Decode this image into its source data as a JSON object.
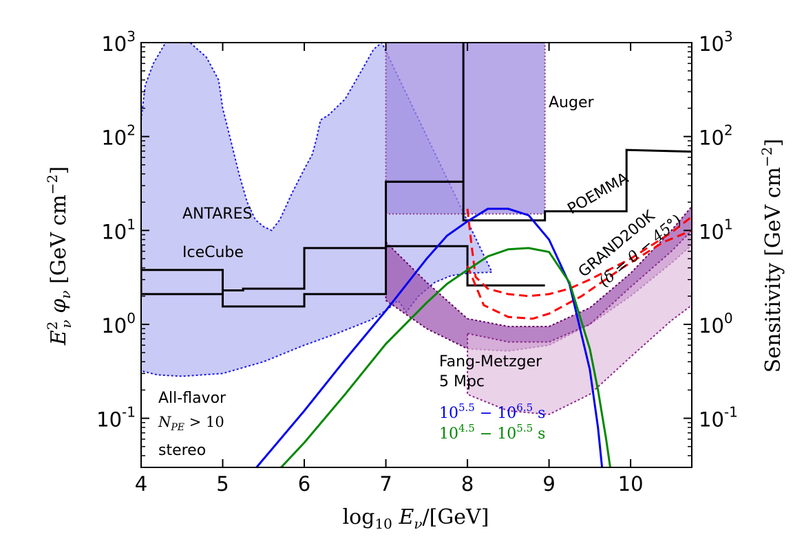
{
  "chart_data": {
    "type": "line",
    "xlabel": "log10 Eν/[GeV]",
    "ylabel_left": "E²ν φν [GeV cm⁻²]",
    "ylabel_right": "Sensitivity [GeV cm⁻²]",
    "xlim": [
      4,
      10.75
    ],
    "ylim": [
      0.03,
      1000
    ],
    "yscale": "log",
    "x_ticks": [
      "4",
      "5",
      "6",
      "7",
      "8",
      "9",
      "10"
    ],
    "y_ticks": [
      {
        "value": 0.1,
        "base": "10",
        "exp": "-1"
      },
      {
        "value": 1,
        "base": "10",
        "exp": "0"
      },
      {
        "value": 10,
        "base": "10",
        "exp": "1"
      },
      {
        "value": 100,
        "base": "10",
        "exp": "2"
      },
      {
        "value": 1000,
        "base": "10",
        "exp": "3"
      }
    ],
    "bands": [
      {
        "name": "ANTARES / IceCube",
        "color": "#b3b3f2",
        "edge": "#1a1ae6",
        "upper": [
          [
            4.0,
            150
          ],
          [
            4.05,
            350
          ],
          [
            4.15,
            600
          ],
          [
            4.3,
            1000
          ],
          [
            4.45,
            1000
          ],
          [
            4.6,
            1000
          ],
          [
            4.8,
            700
          ],
          [
            4.95,
            400
          ],
          [
            5.0,
            200
          ],
          [
            5.1,
            90
          ],
          [
            5.2,
            40
          ],
          [
            5.3,
            20
          ],
          [
            5.4,
            13
          ],
          [
            5.5,
            11
          ],
          [
            5.6,
            10
          ],
          [
            5.7,
            13
          ],
          [
            5.85,
            25
          ],
          [
            6.0,
            45
          ],
          [
            6.1,
            65
          ],
          [
            6.15,
            95
          ],
          [
            6.2,
            150
          ],
          [
            6.3,
            170
          ],
          [
            6.5,
            250
          ],
          [
            6.7,
            500
          ],
          [
            6.85,
            850
          ],
          [
            6.95,
            1000
          ]
        ],
        "lower": [
          [
            4.0,
            0.32
          ],
          [
            4.2,
            0.29
          ],
          [
            4.5,
            0.28
          ],
          [
            5.0,
            0.3
          ],
          [
            5.5,
            0.4
          ],
          [
            6.0,
            0.6
          ],
          [
            6.4,
            0.8
          ],
          [
            6.8,
            1.1
          ],
          [
            7.0,
            1.4
          ],
          [
            7.15,
            1.8
          ],
          [
            7.25,
            1.35
          ],
          [
            7.4,
            2.0
          ],
          [
            7.6,
            2.8
          ],
          [
            7.8,
            3.3
          ],
          [
            8.0,
            3.5
          ],
          [
            8.3,
            3.6
          ]
        ]
      },
      {
        "name": "second_band",
        "color": "#a08ce0",
        "edge": "#8c3f8c",
        "x_range": [
          7.0,
          8.95
        ]
      },
      {
        "name": "POEMMA",
        "color": "#9a50ad",
        "edge": "#660066",
        "upper": [
          [
            7.0,
            7.5
          ],
          [
            7.5,
            2.8
          ],
          [
            8.0,
            1.15
          ],
          [
            8.5,
            0.95
          ],
          [
            9.0,
            0.95
          ],
          [
            9.5,
            1.5
          ],
          [
            10.0,
            3.5
          ],
          [
            10.5,
            10.0
          ],
          [
            10.75,
            18.0
          ]
        ],
        "lower": [
          [
            7.0,
            1.8
          ],
          [
            7.5,
            0.9
          ],
          [
            8.0,
            0.55
          ],
          [
            8.5,
            0.52
          ],
          [
            9.0,
            0.6
          ],
          [
            9.5,
            1.0
          ],
          [
            10.0,
            2.0
          ],
          [
            10.5,
            4.5
          ],
          [
            10.75,
            7.0
          ]
        ]
      },
      {
        "name": "GRAND200K",
        "color": "#e1bfe0",
        "edge": "#8b2a8b",
        "upper": [
          [
            8.0,
            0.8
          ],
          [
            8.5,
            0.65
          ],
          [
            9.0,
            0.65
          ],
          [
            9.5,
            1.0
          ],
          [
            10.0,
            2.5
          ],
          [
            10.5,
            6.0
          ],
          [
            10.75,
            10.0
          ]
        ],
        "lower": [
          [
            8.0,
            0.18
          ],
          [
            8.5,
            0.12
          ],
          [
            9.0,
            0.11
          ],
          [
            9.5,
            0.18
          ],
          [
            10.0,
            0.45
          ],
          [
            10.5,
            1.1
          ],
          [
            10.75,
            1.6
          ]
        ]
      }
    ],
    "series": [
      {
        "name": "Auger",
        "color": "#000000",
        "dash": "none",
        "points": [
          [
            7.0,
            33
          ],
          [
            7.9,
            33
          ],
          [
            7.9,
            33
          ]
        ]
      },
      {
        "name": "ANTARES",
        "color": "#000000",
        "dash": "none",
        "points": [
          [
            4.0,
            7.0
          ],
          [
            4.0,
            2.1
          ],
          [
            5.0,
            2.1
          ],
          [
            5.0,
            2.3
          ],
          [
            5.25,
            2.3
          ],
          [
            5.25,
            2.4
          ],
          [
            6.0,
            2.4
          ],
          [
            6.0,
            6.5
          ],
          [
            7.0,
            6.5
          ],
          [
            7.0,
            33
          ],
          [
            7.95,
            33
          ]
        ]
      },
      {
        "name": "IceCube",
        "color": "#000000",
        "dash": "none",
        "points": [
          [
            4.0,
            3.8
          ],
          [
            5.0,
            3.8
          ],
          [
            5.0,
            1.55
          ],
          [
            6.0,
            1.55
          ],
          [
            6.0,
            2.1
          ],
          [
            7.0,
            2.1
          ],
          [
            7.0,
            6.8
          ],
          [
            8.0,
            6.8
          ],
          [
            8.0,
            2.6
          ],
          [
            8.95,
            2.6
          ]
        ]
      },
      {
        "name": "Auger step",
        "color": "#000000",
        "dash": "none",
        "points": [
          [
            7.95,
            1000
          ],
          [
            7.95,
            12.8
          ],
          [
            8.95,
            12.8
          ],
          [
            8.95,
            16.0
          ],
          [
            9.95,
            16.0
          ],
          [
            9.95,
            72.0
          ],
          [
            10.75,
            69.0
          ]
        ]
      },
      {
        "name": "GRAND200K sensitivity",
        "color": "#ff0000",
        "dash": "dashed",
        "points": [
          [
            8.0,
            17.0
          ],
          [
            8.05,
            7.0
          ],
          [
            8.1,
            3.2
          ],
          [
            8.25,
            2.4
          ],
          [
            8.5,
            2.1
          ],
          [
            8.75,
            2.0
          ],
          [
            9.0,
            2.1
          ],
          [
            9.25,
            2.4
          ],
          [
            9.5,
            3.0
          ],
          [
            10.0,
            5.0
          ],
          [
            10.5,
            9.5
          ],
          [
            10.75,
            14.0
          ]
        ]
      },
      {
        "name": "GRAND200K sensitivity 2",
        "color": "#ff0000",
        "dash": "dashed",
        "points": [
          [
            8.0,
            4.2
          ],
          [
            8.2,
            1.6
          ],
          [
            8.5,
            1.2
          ],
          [
            8.8,
            1.15
          ],
          [
            9.0,
            1.3
          ],
          [
            9.4,
            2.0
          ],
          [
            9.9,
            4.0
          ],
          [
            10.4,
            7.5
          ],
          [
            10.75,
            10.0
          ]
        ]
      },
      {
        "name": "10^5.5 - 10^6.5 s",
        "color": "#0000ee",
        "dash": "none",
        "points": [
          [
            5.4,
            0.029
          ],
          [
            6.0,
            0.12
          ],
          [
            6.5,
            0.42
          ],
          [
            7.0,
            1.4
          ],
          [
            7.5,
            5.0
          ],
          [
            7.75,
            8.8
          ],
          [
            8.0,
            12.5
          ],
          [
            8.25,
            17.0
          ],
          [
            8.5,
            17.0
          ],
          [
            8.75,
            14.5
          ],
          [
            9.0,
            8.0
          ],
          [
            9.25,
            2.7
          ],
          [
            9.5,
            0.33
          ],
          [
            9.6,
            0.08
          ],
          [
            9.65,
            0.03
          ]
        ]
      },
      {
        "name": "10^4.5 - 10^5.5 s",
        "color": "#008800",
        "dash": "none",
        "points": [
          [
            5.7,
            0.029
          ],
          [
            6.0,
            0.055
          ],
          [
            6.5,
            0.18
          ],
          [
            7.0,
            0.62
          ],
          [
            7.5,
            1.7
          ],
          [
            7.75,
            2.7
          ],
          [
            8.0,
            3.8
          ],
          [
            8.25,
            5.3
          ],
          [
            8.5,
            6.3
          ],
          [
            8.75,
            6.5
          ],
          [
            9.0,
            5.9
          ],
          [
            9.25,
            2.8
          ],
          [
            9.5,
            0.55
          ],
          [
            9.6,
            0.2
          ],
          [
            9.7,
            0.06
          ],
          [
            9.75,
            0.03
          ]
        ]
      }
    ],
    "annotations": {
      "auger": "Auger",
      "poemma": "POEMMA",
      "antares": "ANTARES",
      "icecube": "IceCube",
      "grand_name": "GRAND200K",
      "grand_decl": "(δ = 0 − 45°)",
      "fang_line1": "Fang-Metzger",
      "fang_line2": "5 Mpc",
      "allflavor_line1": "All-flavor",
      "npe": "N",
      "npe_sub": "PE",
      "npe_cmp": " > 10",
      "stereo": "stereo",
      "blue_range_a": "10",
      "blue_range_a_exp": "5.5",
      "blue_range_b": " − 10",
      "blue_range_b_exp": "6.5",
      "blue_unit": " s",
      "green_range_a": "10",
      "green_range_a_exp": "4.5",
      "green_range_b": " − 10",
      "green_range_b_exp": "5.5",
      "green_unit": " s"
    }
  }
}
